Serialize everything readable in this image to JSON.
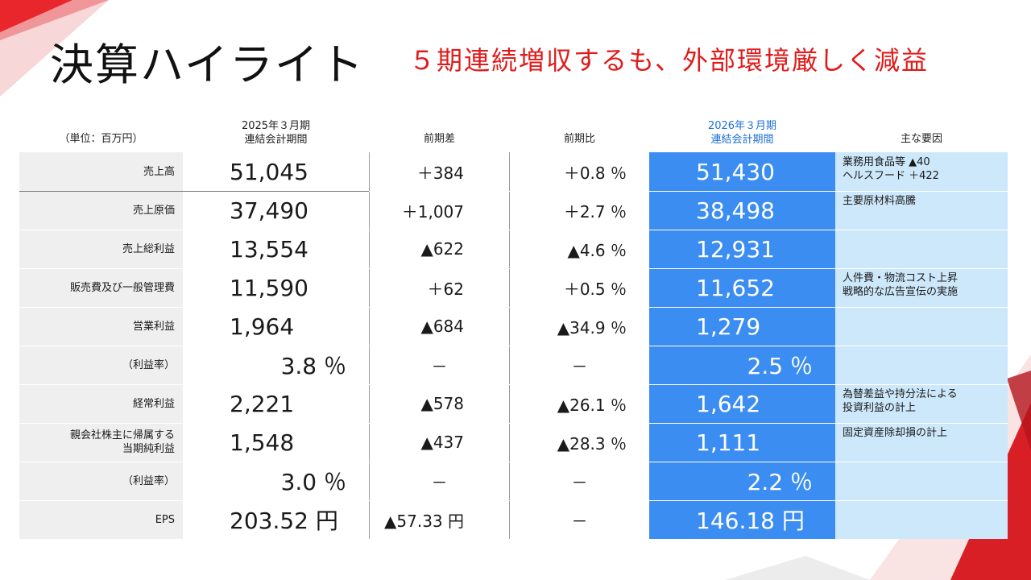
{
  "title": "決算ハイライト",
  "subtitle": "５期連続増収するも、外部環境厳しく減益",
  "headers": {
    "unit": "（単位：百万円）",
    "prev_period_line1": "2025年３月期",
    "prev_period_line2": "連結会計期間",
    "diff": "前期差",
    "ratio": "前期比",
    "curr_period_line1": "2026年３月期",
    "curr_period_line2": "連結会計期間",
    "reason": "主な要因"
  },
  "rows": [
    {
      "label1": "売上高",
      "label2": "",
      "v2025": "51,045",
      "diff": "＋384",
      "ratio": "＋0.8 ％",
      "v2026": "51,430",
      "reason1": "業務用食品等 ▲40",
      "reason2": "ヘルスフード ＋422"
    },
    {
      "label1": "売上原価",
      "label2": "",
      "v2025": "37,490",
      "diff": "＋1,007",
      "ratio": "＋2.7 ％",
      "v2026": "38,498",
      "reason1": "主要原材料高騰",
      "reason2": ""
    },
    {
      "label1": "売上総利益",
      "label2": "",
      "v2025": "13,554",
      "diff": "▲622",
      "ratio": "▲4.6 ％",
      "v2026": "12,931",
      "reason1": "",
      "reason2": ""
    },
    {
      "label1": "販売費及び一般管理費",
      "label2": "",
      "v2025": "11,590",
      "diff": "＋62",
      "ratio": "＋0.5 ％",
      "v2026": "11,652",
      "reason1": "人件費・物流コスト上昇",
      "reason2": "戦略的な広告宣伝の実施"
    },
    {
      "label1": "営業利益",
      "label2": "",
      "v2025": "1,964",
      "diff": "▲684",
      "ratio": "▲34.9 ％",
      "v2026": "1,279",
      "reason1": "",
      "reason2": ""
    },
    {
      "label1": "（利益率）",
      "label2": "",
      "v2025": "3.8 ％",
      "diff": "－",
      "ratio": "－",
      "v2026": "2.5 ％",
      "reason1": "",
      "reason2": ""
    },
    {
      "label1": "経常利益",
      "label2": "",
      "v2025": "2,221",
      "diff": "▲578",
      "ratio": "▲26.1 ％",
      "v2026": "1,642",
      "reason1": "為替差益や持分法による",
      "reason2": "投資利益の計上"
    },
    {
      "label1": "親会社株主に帰属する",
      "label2": "当期純利益",
      "v2025": "1,548",
      "diff": "▲437",
      "ratio": "▲28.3 ％",
      "v2026": "1,111",
      "reason1": "固定資産除却損の計上",
      "reason2": ""
    },
    {
      "label1": "（利益率）",
      "label2": "",
      "v2025": "3.0 ％",
      "diff": "－",
      "ratio": "－",
      "v2026": "2.2 ％",
      "reason1": "",
      "reason2": ""
    },
    {
      "label1": "EPS",
      "label2": "",
      "v2025": "203.52 円",
      "diff": "▲57.33 円",
      "ratio": "－",
      "v2026": "146.18 円",
      "reason1": "",
      "reason2": ""
    }
  ],
  "colors": {
    "accent_red": "#e01b1b",
    "highlight_blue": "#3c8df1",
    "reason_bg": "#cde8fb",
    "label_bg": "#efefef"
  }
}
